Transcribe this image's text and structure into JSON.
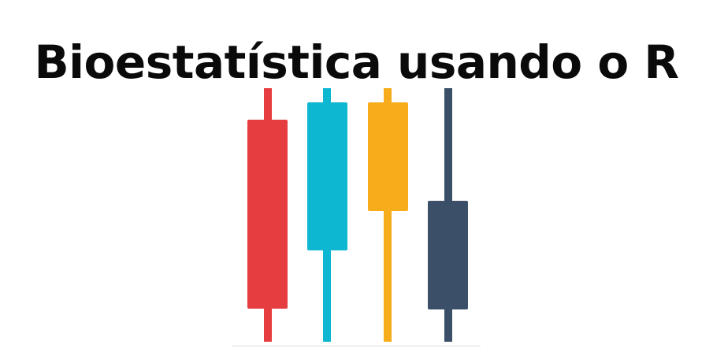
{
  "title": "Bioestatística usando o R",
  "logo": {
    "icon": "candlestick-chart-icon",
    "candles": [
      {
        "name": "red",
        "color": "#e63d40"
      },
      {
        "name": "cyan",
        "color": "#0db6d1"
      },
      {
        "name": "yellow",
        "color": "#f6ac1b"
      },
      {
        "name": "navy",
        "color": "#3b4f68"
      }
    ]
  }
}
